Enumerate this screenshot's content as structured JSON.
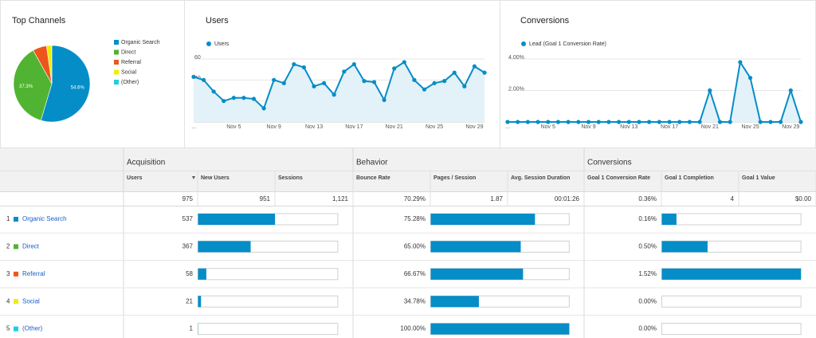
{
  "chart_data": [
    {
      "type": "pie",
      "title": "Top Channels",
      "categories": [
        "Organic Search",
        "Direct",
        "Referral",
        "Social",
        "(Other)"
      ],
      "values": [
        54.6,
        37.3,
        5.9,
        2.1,
        0.1
      ],
      "value_labels": [
        "54.6%",
        "37.3%",
        null,
        null,
        null
      ],
      "colors": [
        "#058dc7",
        "#50b432",
        "#ed561b",
        "#edef00",
        "#24cbe5"
      ]
    },
    {
      "type": "line",
      "title": "Users",
      "categories": [
        "...",
        null,
        null,
        null,
        "Nov 5",
        null,
        null,
        null,
        "Nov 9",
        null,
        null,
        null,
        "Nov 13",
        null,
        null,
        null,
        "Nov 17",
        null,
        null,
        null,
        "Nov 21",
        null,
        null,
        null,
        "Nov 25",
        null,
        null,
        null,
        "Nov 29",
        null
      ],
      "series": [
        {
          "name": "Users",
          "color": "#058dc7",
          "values": [
            43,
            40,
            29,
            20,
            23,
            23,
            22,
            13,
            40,
            37,
            55,
            52,
            34,
            37,
            26,
            48,
            55,
            39,
            38,
            21,
            51,
            57,
            40,
            31,
            37,
            39,
            47,
            34,
            53,
            47
          ]
        }
      ],
      "ylim": [
        0,
        60
      ],
      "yticks": [
        20,
        40,
        60
      ],
      "grid": true
    },
    {
      "type": "line",
      "title": "Conversions",
      "categories": [
        "...",
        null,
        null,
        null,
        "Nov 5",
        null,
        null,
        null,
        "Nov 9",
        null,
        null,
        null,
        "Nov 13",
        null,
        null,
        null,
        "Nov 17",
        null,
        null,
        null,
        "Nov 21",
        null,
        null,
        null,
        "Nov 25",
        null,
        null,
        null,
        "Nov 29",
        null
      ],
      "series": [
        {
          "name": "Lead (Goal 1 Conversion Rate)",
          "color": "#058dc7",
          "values": [
            0,
            0,
            0,
            0,
            0,
            0,
            0,
            0,
            0,
            0,
            0,
            0,
            0,
            0,
            0,
            0,
            0,
            0,
            0,
            0,
            2.0,
            0,
            0,
            3.8,
            2.8,
            0,
            0,
            0,
            2.0,
            0
          ]
        }
      ],
      "ylim": [
        0,
        4
      ],
      "yticks": [
        {
          "value": 2,
          "label": "2.00%"
        },
        {
          "value": 4,
          "label": "4.00%"
        }
      ],
      "grid": true
    }
  ],
  "table": {
    "groups": [
      "Acquisition",
      "Behavior",
      "Conversions"
    ],
    "columns": [
      "Users",
      "New Users",
      "Sessions",
      "Bounce Rate",
      "Pages / Session",
      "Avg. Session Duration",
      "Goal 1 Conversion Rate",
      "Goal 1 Completion",
      "Goal 1 Value"
    ],
    "totals": [
      "975",
      "951",
      "1,121",
      "70.29%",
      "1.87",
      "00:01:26",
      "0.36%",
      "4",
      "$0.00"
    ],
    "rows": [
      {
        "index": "1",
        "name": "Organic Search",
        "color": "#058dc7",
        "users": "537",
        "bounce_rate": "75.28%",
        "conversion_rate": "0.16%"
      },
      {
        "index": "2",
        "name": "Direct",
        "color": "#50b432",
        "users": "367",
        "bounce_rate": "65.00%",
        "conversion_rate": "0.50%"
      },
      {
        "index": "3",
        "name": "Referral",
        "color": "#ed561b",
        "users": "58",
        "bounce_rate": "66.67%",
        "conversion_rate": "1.52%"
      },
      {
        "index": "4",
        "name": "Social",
        "color": "#edef00",
        "users": "21",
        "bounce_rate": "34.78%",
        "conversion_rate": "0.00%"
      },
      {
        "index": "5",
        "name": "(Other)",
        "color": "#24cbe5",
        "users": "1",
        "bounce_rate": "100.00%",
        "conversion_rate": "0.00%"
      }
    ]
  }
}
